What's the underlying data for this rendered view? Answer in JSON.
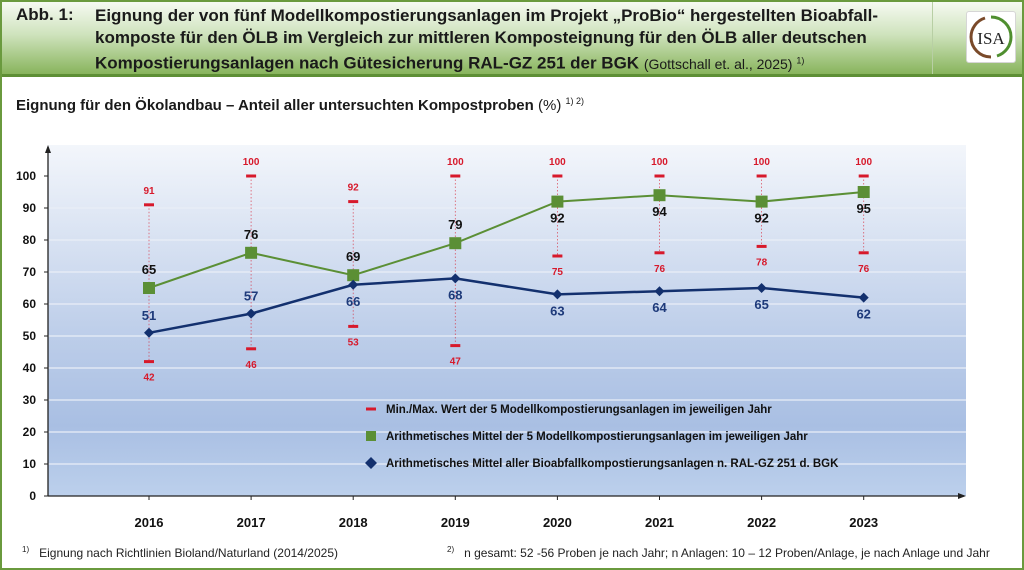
{
  "header": {
    "figure_label": "Abb. 1:",
    "title_bold": "Eignung der von fünf Modellkompostierungsanlagen im Projekt „ProBio“ hergestellten Bioabfall-komposte für den ÖLB im Vergleich zur mittleren Komposteignung für den ÖLB aller deutschen Kompostierungsanlagen nach Gütesicherung RAL-GZ 251 der BGK",
    "citation": "(Gottschall et. al., 2025)",
    "citation_sup": "1)",
    "logo_text": "ISA",
    "colors": {
      "header_green": "#88b45c",
      "border_green": "#6a9a3e"
    }
  },
  "chart_data": {
    "type": "line",
    "title": "Eignung für den Ökolandbau – Anteil aller untersuchten Kompostproben",
    "ylabel_unit": "(%)",
    "ylabel_sup": "1) 2)",
    "xlabel": "",
    "x": [
      "2016",
      "2017",
      "2018",
      "2019",
      "2020",
      "2021",
      "2022",
      "2023"
    ],
    "ylim": [
      0,
      100
    ],
    "yticks": [
      0,
      10,
      20,
      30,
      40,
      50,
      60,
      70,
      80,
      90,
      100
    ],
    "grid": true,
    "legend_position": "bottom-center-inside",
    "series": [
      {
        "name": "Min./Max. Wert der 5 Modellkompostierungsanlagen im jeweiligen Jahr",
        "kind": "range",
        "min": [
          42,
          46,
          53,
          47,
          75,
          76,
          78,
          76
        ],
        "max": [
          91,
          100,
          92,
          100,
          100,
          100,
          100,
          100
        ],
        "color": "#d7192b",
        "marker": "dash"
      },
      {
        "name": "Arithmetisches Mittel der 5 Modellkompostierungsanlagen im jeweiligen Jahr",
        "kind": "line",
        "values": [
          65,
          76,
          69,
          79,
          92,
          94,
          92,
          95
        ],
        "color": "#5b8f35",
        "marker": "square",
        "label_color": "#111111"
      },
      {
        "name": "Arithmetisches Mittel aller Bioabfallkompostierungsanlagen n. RAL-GZ 251 d. BGK",
        "kind": "line",
        "values": [
          51,
          57,
          66,
          68,
          63,
          64,
          65,
          62
        ],
        "color": "#13306e",
        "marker": "diamond",
        "label_color": "#1e3a7a"
      }
    ]
  },
  "footnotes": {
    "fn1_mark": "1)",
    "fn1_text": "Eignung nach Richtlinien Bioland/Naturland (2014/2025)",
    "fn2_mark": "2)",
    "fn2_text": "n gesamt: 52 -56 Proben je nach Jahr; n Anlagen: 10 – 12 Proben/Anlage, je nach Anlage und Jahr"
  }
}
